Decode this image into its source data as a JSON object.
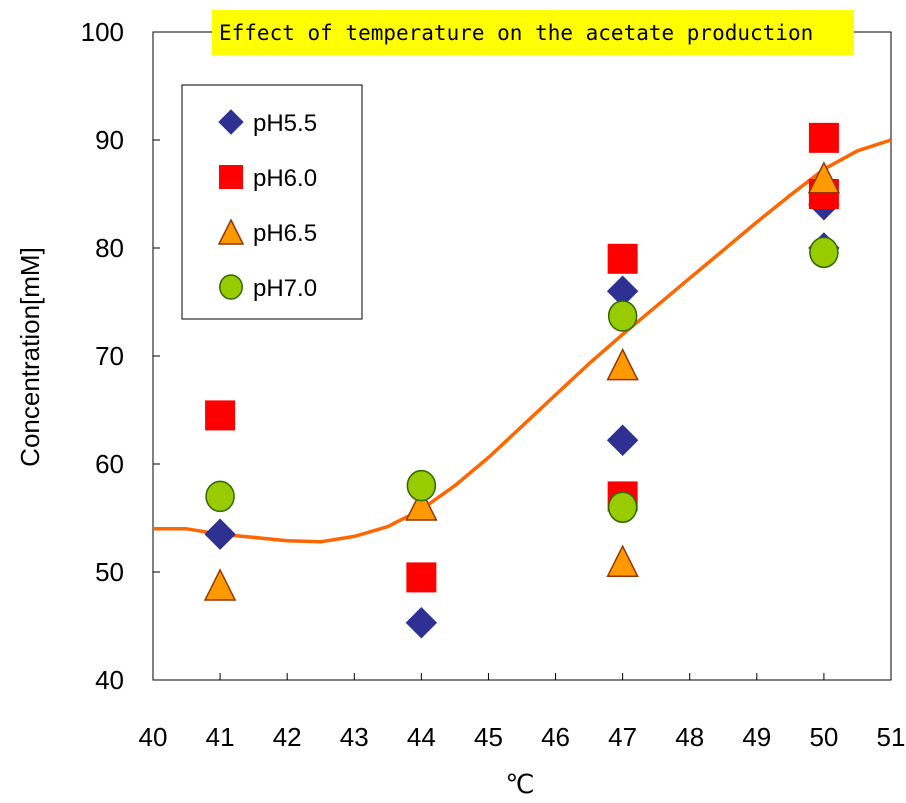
{
  "chart_data": {
    "type": "scatter",
    "title": "Effect of temperature on the acetate production",
    "xlabel": "℃",
    "ylabel": "Concentration[mM]",
    "xlim": [
      40,
      51
    ],
    "ylim": [
      40,
      100
    ],
    "x_ticks": [
      "40",
      "41",
      "42",
      "43",
      "44",
      "45",
      "46",
      "47",
      "48",
      "49",
      "50",
      "51"
    ],
    "y_ticks": [
      "40",
      "50",
      "60",
      "70",
      "80",
      "90",
      "100"
    ],
    "grid": false,
    "legend_position": "top-left",
    "series": [
      {
        "name": "pH5.5",
        "marker": "diamond",
        "color": "#2E3192",
        "points": [
          [
            41,
            53.5
          ],
          [
            44,
            45.3
          ],
          [
            47,
            76.0
          ],
          [
            47,
            62.2
          ],
          [
            50,
            80.0
          ],
          [
            50,
            84.0
          ]
        ]
      },
      {
        "name": "pH6.0",
        "marker": "square",
        "color": "#FF0000",
        "points": [
          [
            41,
            64.5
          ],
          [
            44,
            49.5
          ],
          [
            47,
            79.0
          ],
          [
            47,
            57.0
          ],
          [
            50,
            90.2
          ],
          [
            50,
            85.0
          ]
        ]
      },
      {
        "name": "pH6.5",
        "marker": "triangle",
        "color": "#FF9900",
        "points": [
          [
            41,
            48.8
          ],
          [
            44,
            56.2
          ],
          [
            47,
            69.2
          ],
          [
            47,
            51.0
          ],
          [
            50,
            86.5
          ]
        ]
      },
      {
        "name": "pH7.0",
        "marker": "circle",
        "color": "#99CC00",
        "points": [
          [
            41,
            57.0
          ],
          [
            44,
            58.0
          ],
          [
            47,
            73.7
          ],
          [
            47,
            56.0
          ],
          [
            50,
            79.6
          ]
        ]
      }
    ],
    "trend_line": {
      "color": "#FF6600",
      "points": [
        [
          40,
          54.0
        ],
        [
          40.5,
          54.0
        ],
        [
          41,
          53.5
        ],
        [
          41.5,
          53.2
        ],
        [
          42,
          52.9
        ],
        [
          42.5,
          52.8
        ],
        [
          43,
          53.3
        ],
        [
          43.5,
          54.2
        ],
        [
          44,
          55.8
        ],
        [
          44.5,
          58.0
        ],
        [
          45,
          60.6
        ],
        [
          45.5,
          63.5
        ],
        [
          46,
          66.4
        ],
        [
          46.5,
          69.3
        ],
        [
          47,
          72.0
        ],
        [
          47.5,
          74.6
        ],
        [
          48,
          77.2
        ],
        [
          48.5,
          79.8
        ],
        [
          49,
          82.4
        ],
        [
          49.5,
          84.9
        ],
        [
          50,
          87.3
        ],
        [
          50.5,
          89.0
        ],
        [
          51,
          90.0
        ]
      ]
    },
    "colors": {
      "title_background": "#FFFF00",
      "axis": "#000000",
      "trend": "#FF6600"
    }
  }
}
